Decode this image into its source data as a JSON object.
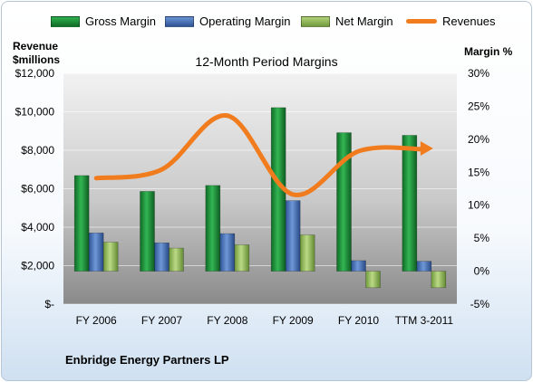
{
  "legend": {
    "gross": "Gross Margin",
    "operating": "Operating Margin",
    "net": "Net Margin",
    "revenues": "Revenues"
  },
  "left_axis_title": {
    "line1": "Revenue",
    "line2": "$millions"
  },
  "right_axis_title": "Margin %",
  "footer": "Enbridge Energy Partners LP",
  "colors": {
    "gross": "#1f8a3a",
    "operating": "#4a74b8",
    "net": "#92b85a",
    "revenues": "#f07c1e",
    "plot_bg_top": "#f0f0f0",
    "plot_bg_bottom": "#8c8c8c"
  },
  "chart_data": {
    "type": "bar",
    "title": "12-Month Period Margins",
    "categories": [
      "FY 2006",
      "FY 2007",
      "FY 2008",
      "FY 2009",
      "FY 2010",
      "TTM 3-2011"
    ],
    "left_axis": {
      "ticks": [
        "$-",
        "$2,000",
        "$4,000",
        "$6,000",
        "$8,000",
        "$10,000",
        "$12,000"
      ],
      "ylim": [
        0,
        12000
      ]
    },
    "right_axis": {
      "ticks": [
        "-5%",
        "0%",
        "5%",
        "10%",
        "15%",
        "20%",
        "25%",
        "30%"
      ],
      "ylim": [
        -5,
        30
      ]
    },
    "series": [
      {
        "name": "Gross Margin",
        "axis": "right",
        "values": [
          14.5,
          12.1,
          13.0,
          24.8,
          21.0,
          20.6
        ]
      },
      {
        "name": "Operating Margin",
        "axis": "right",
        "values": [
          5.8,
          4.3,
          5.7,
          10.7,
          1.6,
          1.5
        ]
      },
      {
        "name": "Net Margin",
        "axis": "right",
        "values": [
          4.4,
          3.5,
          4.0,
          5.5,
          -2.5,
          -2.5
        ]
      },
      {
        "name": "Revenues",
        "axis": "left",
        "type": "line",
        "values": [
          6550,
          7000,
          9800,
          5700,
          7950,
          8050
        ]
      }
    ]
  }
}
